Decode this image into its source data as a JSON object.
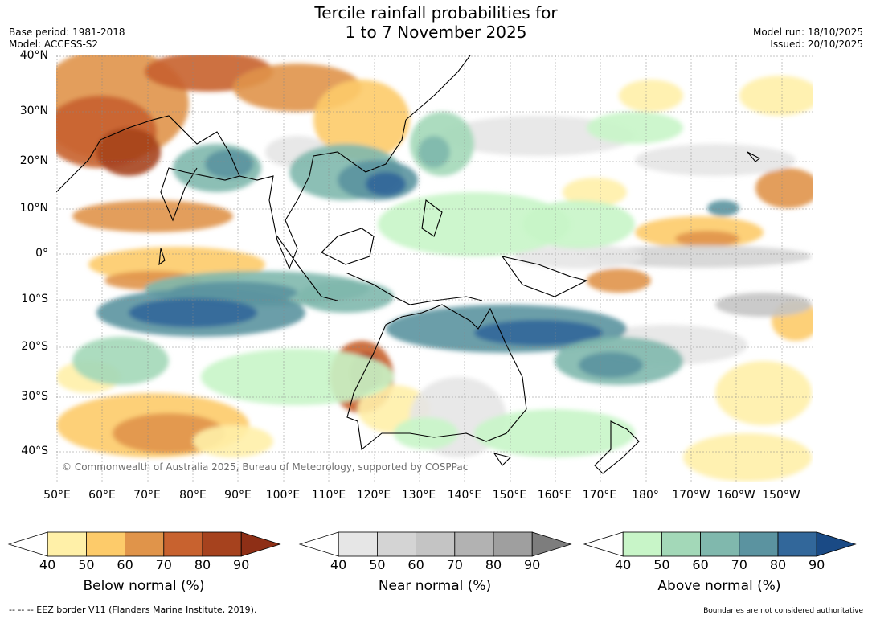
{
  "title": {
    "line1": "Tercile rainfall probabilities for",
    "line2": "1 to 7 November 2025"
  },
  "meta": {
    "base_period": "Base period: 1981-2018",
    "model": "Model: ACCESS-S2",
    "model_run": "Model run: 18/10/2025",
    "issued": "Issued: 20/10/2025"
  },
  "axes": {
    "latitudes": [
      "40°N",
      "30°N",
      "20°N",
      "10°N",
      "0°",
      "10°S",
      "20°S",
      "30°S",
      "40°S"
    ],
    "longitudes": [
      "50°E",
      "60°E",
      "70°E",
      "80°E",
      "90°E",
      "100°E",
      "110°E",
      "120°E",
      "130°E",
      "140°E",
      "150°E",
      "160°E",
      "170°E",
      "180°",
      "170°W",
      "160°W",
      "150°W"
    ],
    "lat_range": [
      -47,
      40
    ],
    "lon_range": [
      50,
      217
    ]
  },
  "copyright": "© Commonwealth of Australia 2025, Bureau of Meteorology, supported by COSPPac",
  "legends": [
    {
      "id": "below",
      "title": "Below normal (%)",
      "ticks": [
        "40",
        "50",
        "60",
        "70",
        "80",
        "90"
      ],
      "colors": [
        "#fff0a8",
        "#fdcb6a",
        "#e0944a",
        "#c8622f",
        "#a6421e"
      ],
      "extend_color": "#8e2f16"
    },
    {
      "id": "near",
      "title": "Near normal (%)",
      "ticks": [
        "40",
        "50",
        "60",
        "70",
        "80",
        "90"
      ],
      "colors": [
        "#e6e6e6",
        "#d4d4d4",
        "#c4c4c4",
        "#b2b2b2",
        "#9f9f9f"
      ],
      "extend_color": "#7d7d7d"
    },
    {
      "id": "above",
      "title": "Above normal (%)",
      "ticks": [
        "40",
        "50",
        "60",
        "70",
        "80",
        "90"
      ],
      "colors": [
        "#c8f5c8",
        "#a3d8b8",
        "#80b8ad",
        "#5b93a0",
        "#32679a"
      ],
      "extend_color": "#1a4a85"
    }
  ],
  "footer": {
    "eez": "--  --  -- EEZ border V11 (Flanders Marine Institute, 2019).",
    "disclaimer": "Boundaries are not considered authoritative"
  }
}
